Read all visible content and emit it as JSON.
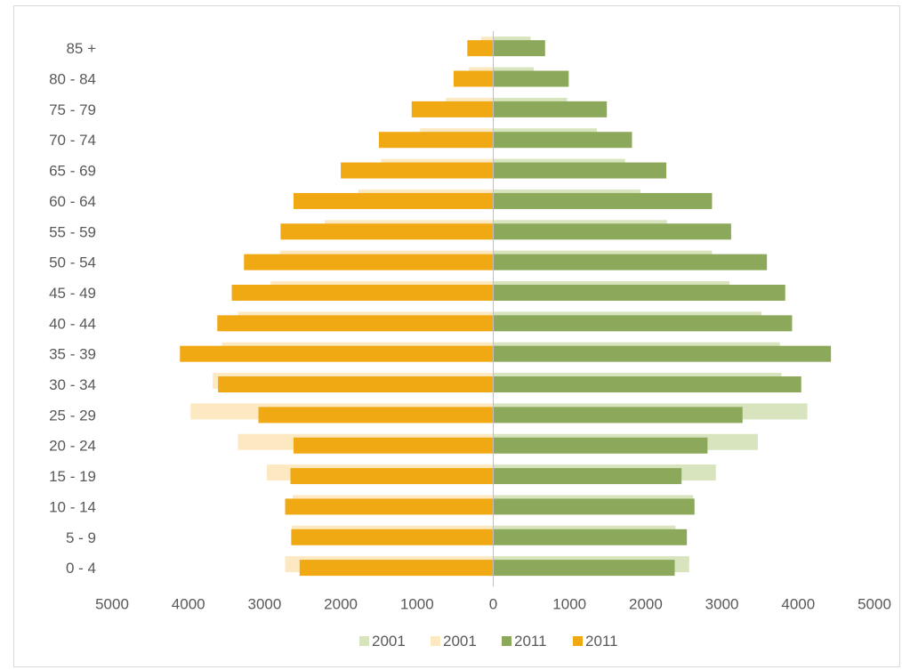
{
  "chart_data": {
    "type": "bar",
    "orientation": "horizontal",
    "title": "",
    "xlabel": "",
    "ylabel": "",
    "xlim": [
      -5000,
      5000
    ],
    "x_ticks": [
      -5000,
      -4000,
      -3000,
      -2000,
      -1000,
      0,
      1000,
      2000,
      3000,
      4000,
      5000
    ],
    "x_tick_labels": [
      "5000",
      "4000",
      "3000",
      "2000",
      "1000",
      "0",
      "1000",
      "2000",
      "3000",
      "4000",
      "5000"
    ],
    "grid": false,
    "legend_position": "bottom",
    "categories": [
      "0 - 4",
      "5 - 9",
      "10 - 14",
      "15 - 19",
      "20 - 24",
      "25 - 29",
      "30 - 34",
      "35 - 39",
      "40 - 44",
      "45 - 49",
      "50 - 54",
      "55 - 59",
      "60 - 64",
      "65 - 69",
      "70 - 74",
      "75 - 79",
      "80 - 84",
      "85 +"
    ],
    "series": [
      {
        "name": "2001",
        "side": "right",
        "year": "2001",
        "color": "#d7e4bd",
        "values": [
          2570,
          2390,
          2620,
          2920,
          3470,
          4120,
          3780,
          3760,
          3520,
          3100,
          2870,
          2280,
          1930,
          1730,
          1360,
          970,
          530,
          490
        ]
      },
      {
        "name": "2001",
        "side": "left",
        "year": "2001",
        "color": "#fde9c1",
        "values": [
          2730,
          2640,
          2630,
          2970,
          3350,
          3970,
          3680,
          3560,
          3350,
          2920,
          2800,
          2210,
          1770,
          1470,
          960,
          620,
          320,
          160
        ]
      },
      {
        "name": "2011",
        "side": "right",
        "year": "2011",
        "color": "#8ca85a",
        "values": [
          2380,
          2540,
          2640,
          2470,
          2810,
          3270,
          4040,
          4430,
          3920,
          3830,
          3590,
          3120,
          2870,
          2270,
          1820,
          1490,
          990,
          680
        ]
      },
      {
        "name": "2011",
        "side": "left",
        "year": "2011",
        "color": "#f0a813",
        "values": [
          2540,
          2650,
          2730,
          2660,
          2620,
          3080,
          3610,
          4110,
          3620,
          3430,
          3270,
          2790,
          2620,
          2000,
          1500,
          1070,
          520,
          340
        ]
      }
    ]
  }
}
